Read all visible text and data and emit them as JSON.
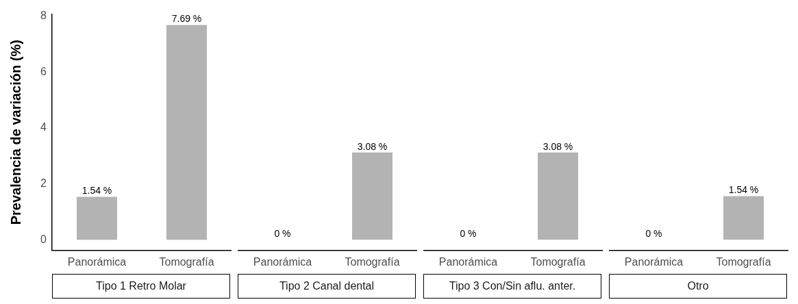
{
  "chart_data": [
    {
      "type": "bar",
      "title": "Tipo 1 Retro Molar",
      "ylabel": "Prevalencia de variación (%)",
      "categories": [
        "Panorámica",
        "Tomografía"
      ],
      "values": [
        1.54,
        7.69
      ],
      "value_labels": [
        "1.54 %",
        "7.69 %"
      ],
      "color": "#b3b3b3",
      "ylim": [
        -0.38,
        8.08
      ],
      "yticks": [
        0,
        2,
        4,
        6,
        8
      ],
      "grid": false,
      "legend": false
    },
    {
      "type": "bar",
      "title": "Tipo 2 Canal dental",
      "categories": [
        "Panorámica",
        "Tomografía"
      ],
      "values": [
        0,
        3.08
      ],
      "value_labels": [
        "0 %",
        "3.08 %"
      ],
      "color": "#b3b3b3",
      "grid": false,
      "legend": false,
      "tick_labels": "x"
    },
    {
      "type": "bar",
      "title": "Tipo 3 Con/Sin aflu. anter.",
      "categories": [
        "Panorámica",
        "Tomografía"
      ],
      "values": [
        0,
        3.08
      ],
      "value_labels": [
        "0 %",
        "3.08 %"
      ],
      "color": "#b3b3b3",
      "grid": false,
      "legend": false,
      "tick_labels": "x"
    },
    {
      "type": "bar",
      "title": "Otro",
      "categories": [
        "Panorámica",
        "Tomografía"
      ],
      "values": [
        0,
        1.54
      ],
      "value_labels": [
        "0 %",
        "1.54 %"
      ],
      "color": "#b3b3b3",
      "grid": false,
      "legend": false,
      "tick_labels": "x"
    }
  ]
}
